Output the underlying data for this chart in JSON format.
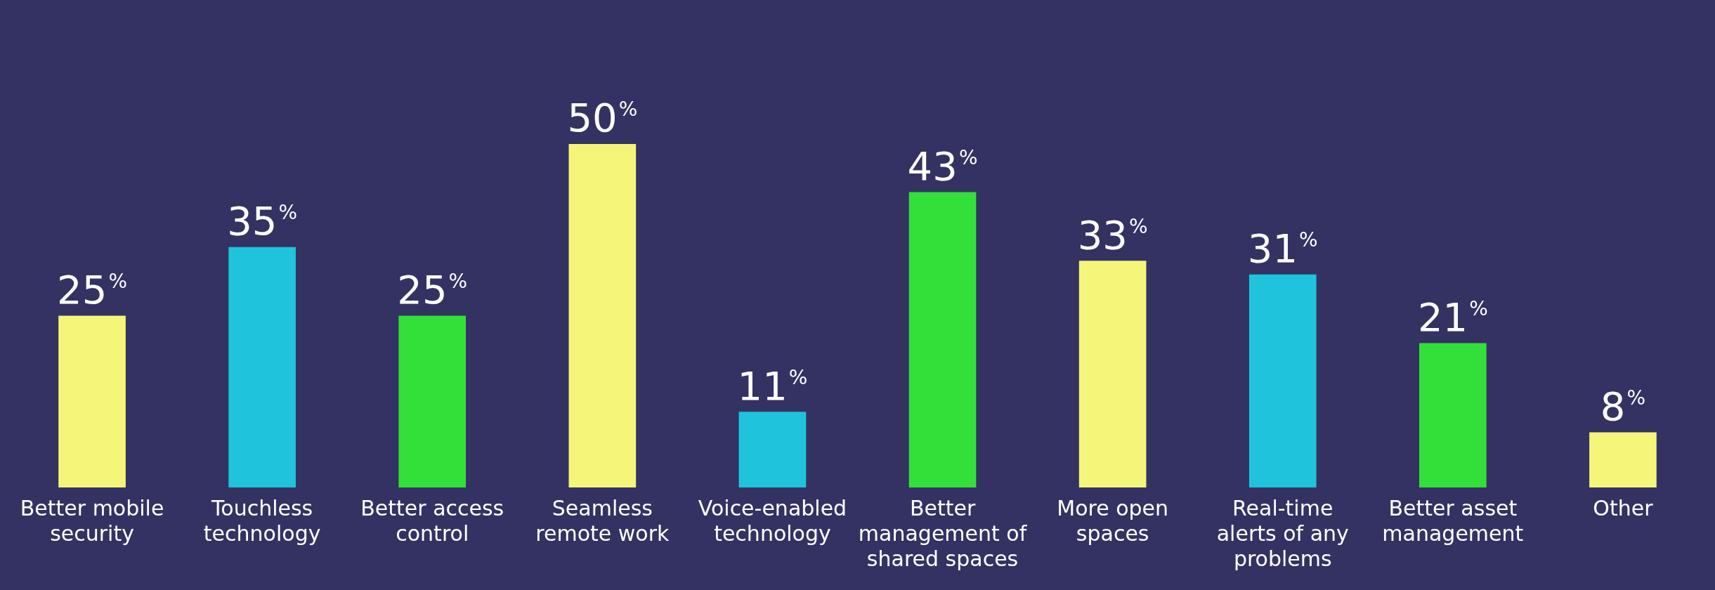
{
  "chart_data": {
    "type": "bar",
    "categories": [
      "Better mobile security",
      "Touchless technology",
      "Better access control",
      "Seamless remote work",
      "Voice-enabled technology",
      "Better management of shared spaces",
      "More open spaces",
      "Real-time alerts of any problems",
      "Better asset management",
      "Other"
    ],
    "values": [
      25,
      35,
      25,
      50,
      11,
      43,
      33,
      31,
      21,
      8
    ],
    "colors": [
      "#f5f57a",
      "#1fc3dc",
      "#33e03a",
      "#f5f57a",
      "#1fc3dc",
      "#33e03a",
      "#f5f57a",
      "#1fc3dc",
      "#33e03a",
      "#f5f57a"
    ],
    "value_labels": [
      "25$^{%}$",
      "35$^{%}$",
      "25$^{%}$",
      "50$^{%}$",
      "11$^{%}$",
      "43$^{%}$",
      "33$^{%}$",
      "31$^{%}$",
      "21$^{%}$",
      "8$^{%}$"
    ],
    "grid": false,
    "legend": false,
    "tick_labels": "x"
  }
}
